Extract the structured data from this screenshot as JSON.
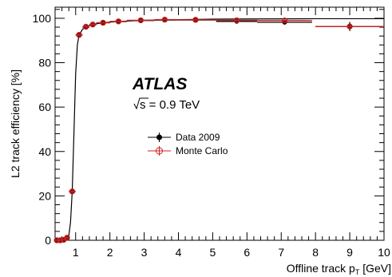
{
  "chart_data": {
    "type": "scatter",
    "ylabel": "L2 track efficiency [%]",
    "xlabel_main": "Offline track p",
    "xlabel_sub": "T",
    "xlabel_unit": " [GeV]",
    "xlim": [
      0.4,
      10
    ],
    "ylim": [
      0,
      105
    ],
    "x_ticks": [
      1,
      2,
      3,
      4,
      5,
      6,
      7,
      8,
      9,
      10
    ],
    "y_ticks": [
      0,
      20,
      40,
      60,
      80,
      100
    ],
    "atlas_label": "ATLAS",
    "energy_label_sqrt": "s",
    "energy_label_text": " = 0.9 TeV",
    "series": [
      {
        "name": "Data 2009",
        "color": "#000000",
        "marker": "filled-circle",
        "points": [
          {
            "x": 0.45,
            "y": 0.0,
            "xerr": 0.05,
            "yerr": 0.0
          },
          {
            "x": 0.55,
            "y": 0.0,
            "xerr": 0.05,
            "yerr": 0.0
          },
          {
            "x": 0.65,
            "y": 0.2,
            "xerr": 0.05,
            "yerr": 0.0
          },
          {
            "x": 0.75,
            "y": 1.0,
            "xerr": 0.05,
            "yerr": 0.3
          },
          {
            "x": 0.9,
            "y": 22.0,
            "xerr": 0.1,
            "yerr": 0.5
          },
          {
            "x": 1.1,
            "y": 92.5,
            "xerr": 0.1,
            "yerr": 0.5
          },
          {
            "x": 1.3,
            "y": 96.0,
            "xerr": 0.1,
            "yerr": 0.4
          },
          {
            "x": 1.5,
            "y": 97.0,
            "xerr": 0.1,
            "yerr": 0.4
          },
          {
            "x": 1.8,
            "y": 98.0,
            "xerr": 0.2,
            "yerr": 0.3
          },
          {
            "x": 2.25,
            "y": 98.5,
            "xerr": 0.25,
            "yerr": 0.3
          },
          {
            "x": 2.9,
            "y": 99.0,
            "xerr": 0.4,
            "yerr": 0.3
          },
          {
            "x": 3.6,
            "y": 99.2,
            "xerr": 0.3,
            "yerr": 0.3
          },
          {
            "x": 4.5,
            "y": 99.2,
            "xerr": 0.6,
            "yerr": 0.3
          },
          {
            "x": 5.7,
            "y": 98.6,
            "xerr": 0.6,
            "yerr": 0.5
          },
          {
            "x": 7.1,
            "y": 98.2,
            "xerr": 0.8,
            "yerr": 0.8
          },
          {
            "x": 9.0,
            "y": 96.3,
            "xerr": 1.0,
            "yerr": 2.0
          }
        ]
      },
      {
        "name": "Monte Carlo",
        "color": "#cc2222",
        "marker": "open-circle-cross",
        "points": [
          {
            "x": 0.45,
            "y": 0.0,
            "xerr": 0.05,
            "yerr": 0.0
          },
          {
            "x": 0.55,
            "y": 0.0,
            "xerr": 0.05,
            "yerr": 0.0
          },
          {
            "x": 0.65,
            "y": 0.2,
            "xerr": 0.05,
            "yerr": 0.0
          },
          {
            "x": 0.75,
            "y": 1.2,
            "xerr": 0.05,
            "yerr": 0.3
          },
          {
            "x": 0.9,
            "y": 22.0,
            "xerr": 0.1,
            "yerr": 0.5
          },
          {
            "x": 1.1,
            "y": 92.5,
            "xerr": 0.1,
            "yerr": 0.5
          },
          {
            "x": 1.3,
            "y": 96.2,
            "xerr": 0.1,
            "yerr": 0.4
          },
          {
            "x": 1.5,
            "y": 97.2,
            "xerr": 0.1,
            "yerr": 0.4
          },
          {
            "x": 1.8,
            "y": 98.0,
            "xerr": 0.2,
            "yerr": 0.3
          },
          {
            "x": 2.25,
            "y": 98.6,
            "xerr": 0.25,
            "yerr": 0.3
          },
          {
            "x": 2.9,
            "y": 99.1,
            "xerr": 0.4,
            "yerr": 0.3
          },
          {
            "x": 3.6,
            "y": 99.4,
            "xerr": 0.3,
            "yerr": 0.3
          },
          {
            "x": 4.5,
            "y": 99.3,
            "xerr": 0.6,
            "yerr": 0.3
          },
          {
            "x": 5.7,
            "y": 99.1,
            "xerr": 0.6,
            "yerr": 0.3
          },
          {
            "x": 7.1,
            "y": 99.0,
            "xerr": 0.8,
            "yerr": 0.3
          },
          {
            "x": 9.0,
            "y": 96.3,
            "xerr": 1.0,
            "yerr": 0.5
          }
        ]
      }
    ],
    "fit_curve": {
      "color": "#000000",
      "points": [
        [
          0.4,
          0
        ],
        [
          0.7,
          0.3
        ],
        [
          0.8,
          2
        ],
        [
          0.85,
          8
        ],
        [
          0.9,
          22
        ],
        [
          0.95,
          48
        ],
        [
          1.0,
          75
        ],
        [
          1.05,
          88
        ],
        [
          1.1,
          92.5
        ],
        [
          1.2,
          95
        ],
        [
          1.3,
          96.2
        ],
        [
          1.5,
          97.2
        ],
        [
          1.8,
          98.0
        ],
        [
          2.25,
          98.6
        ],
        [
          3.0,
          99.1
        ],
        [
          4.0,
          99.4
        ],
        [
          5.0,
          99.6
        ],
        [
          6.0,
          99.7
        ],
        [
          8.0,
          99.8
        ],
        [
          10.0,
          99.8
        ]
      ]
    },
    "legend_position": "center-left"
  }
}
